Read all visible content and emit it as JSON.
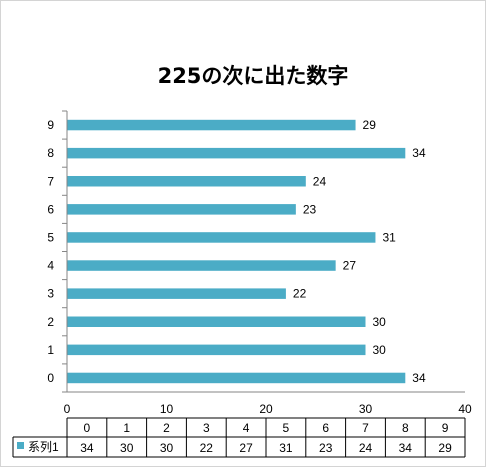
{
  "chart_data": {
    "type": "bar",
    "orientation": "horizontal",
    "title": "225の次に出た数字",
    "categories": [
      "0",
      "1",
      "2",
      "3",
      "4",
      "5",
      "6",
      "7",
      "8",
      "9"
    ],
    "series": [
      {
        "name": "系列1",
        "values": [
          34,
          30,
          30,
          22,
          27,
          31,
          23,
          24,
          34,
          29
        ],
        "color": "#4BACC6"
      }
    ],
    "xlim": [
      0,
      40
    ],
    "xticks": [
      0,
      10,
      20,
      30,
      40
    ],
    "grid": false,
    "data_labels": true,
    "data_table": true
  }
}
